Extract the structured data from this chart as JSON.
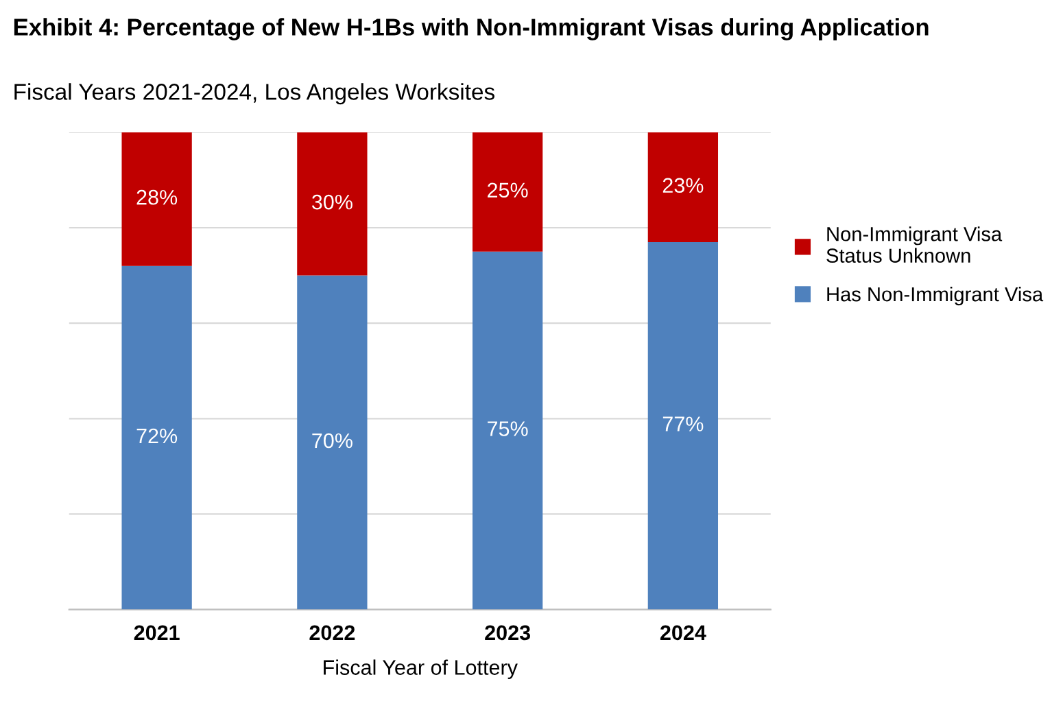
{
  "chart_data": {
    "type": "bar",
    "title": "Exhibit 4: Percentage of New H-1Bs with Non-Immigrant Visas during Application",
    "subtitle": "Fiscal Years 2021-2024, Los Angeles Worksites",
    "xlabel": "Fiscal Year of Lottery",
    "categories": [
      "2021",
      "2022",
      "2023",
      "2024"
    ],
    "stacked": true,
    "series": [
      {
        "name": "Has Non-Immigrant Visa",
        "color": "#4f81bd",
        "values": [
          72,
          70,
          75,
          77
        ],
        "value_labels": [
          "72%",
          "70%",
          "75%",
          "77%"
        ]
      },
      {
        "name": "Non-Immigrant Visa Status Unknown",
        "color": "#c00000",
        "values": [
          28,
          30,
          25,
          23
        ],
        "value_labels": [
          "28%",
          "30%",
          "25%",
          "23%"
        ]
      }
    ],
    "grid": "y",
    "legend": "right",
    "tick_labels": "x"
  }
}
